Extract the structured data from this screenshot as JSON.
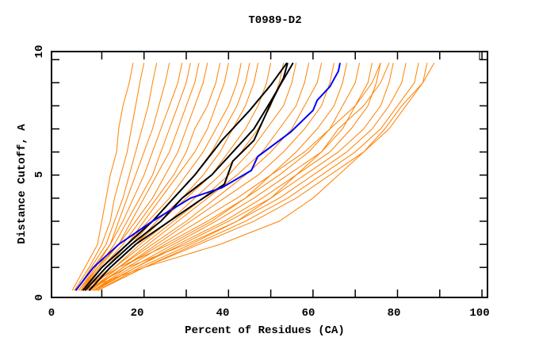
{
  "chart_data": {
    "type": "line",
    "title": "T0989-D2",
    "xlabel": "Percent of Residues (CA)",
    "ylabel": "Distance Cutoff, A",
    "xlim": [
      -1.9,
      101.3
    ],
    "ylim": [
      -0.3,
      10.35
    ],
    "x_tick_labels": [
      "0",
      "20",
      "40",
      "60",
      "80",
      "100"
    ],
    "y_tick_labels": [
      "0",
      "5",
      "10"
    ],
    "grid": false,
    "colors": {
      "models": "#ff8000",
      "highlight_black": "#000000",
      "highlight_blue": "#0000ff"
    },
    "y_levels": [
      0,
      1,
      2,
      3,
      4,
      5,
      6,
      7,
      8,
      9,
      9.86
    ],
    "model_series_x": [
      [
        3,
        6,
        9,
        10,
        11,
        12,
        13.5,
        14,
        15,
        16.5,
        17.4
      ],
      [
        3.5,
        7,
        10,
        12,
        13,
        14.5,
        16,
        17,
        18,
        19,
        20
      ],
      [
        4,
        7.5,
        11,
        13,
        15,
        16.5,
        18,
        19.5,
        21,
        22,
        23
      ],
      [
        4,
        8,
        12,
        14,
        16,
        18,
        20,
        22,
        23.5,
        25,
        26
      ],
      [
        4.5,
        8.5,
        12,
        15,
        17.5,
        20,
        22,
        24,
        26,
        28,
        29
      ],
      [
        4.5,
        9,
        13,
        16,
        19,
        22,
        24,
        26,
        28,
        30,
        31
      ],
      [
        5,
        9,
        14,
        17,
        20,
        23,
        26,
        28,
        30,
        32,
        33
      ],
      [
        5,
        9.5,
        14,
        18,
        22,
        25,
        28,
        30,
        32,
        34,
        35
      ],
      [
        5,
        10,
        15,
        19,
        23,
        27,
        30,
        32,
        35,
        37,
        38
      ],
      [
        5.5,
        10,
        16,
        20,
        24,
        28,
        32,
        35,
        37,
        39,
        40
      ],
      [
        5.5,
        11,
        16,
        21,
        26,
        30,
        34,
        37,
        40,
        42,
        43
      ],
      [
        6,
        11,
        17,
        22,
        27,
        32,
        36,
        39,
        42,
        44,
        45
      ],
      [
        6,
        12,
        18,
        23,
        29,
        34,
        38,
        41,
        44,
        46,
        47
      ],
      [
        6,
        12,
        18,
        24,
        30,
        36,
        40,
        44,
        47,
        49,
        50
      ],
      [
        6.5,
        13,
        19,
        26,
        32,
        38,
        43,
        47,
        50,
        52,
        53
      ],
      [
        6.5,
        13,
        20,
        27,
        34,
        40,
        45,
        49,
        53,
        55,
        56
      ],
      [
        7,
        14,
        21,
        28,
        35,
        42,
        48,
        52,
        56,
        58,
        59
      ],
      [
        7,
        14,
        22,
        30,
        37,
        44,
        50,
        55,
        58,
        61,
        62
      ],
      [
        7,
        15,
        23,
        31,
        39,
        47,
        53,
        58,
        62,
        64,
        65
      ],
      [
        7.5,
        15,
        24,
        33,
        42,
        50,
        56,
        61,
        65,
        67,
        68
      ],
      [
        8,
        16,
        25,
        35,
        44,
        52,
        59,
        64,
        67,
        70,
        71
      ],
      [
        8,
        17,
        27,
        37,
        46,
        54,
        62,
        67,
        70,
        73,
        74
      ],
      [
        8,
        18,
        28,
        39,
        48,
        56,
        64,
        69,
        73,
        75,
        76
      ],
      [
        8.5,
        18,
        29,
        40,
        50,
        58,
        66,
        72,
        76,
        78,
        79
      ],
      [
        9,
        19,
        31,
        42,
        52,
        60,
        68,
        74,
        78,
        81,
        82
      ],
      [
        9,
        20,
        32,
        44,
        54,
        62,
        70,
        76,
        80,
        84,
        85
      ],
      [
        9,
        20,
        33,
        46,
        56,
        64,
        72,
        78,
        82,
        86,
        87
      ],
      [
        5,
        20,
        38,
        52,
        60,
        66,
        72,
        77,
        81,
        86,
        88.7
      ],
      [
        5,
        14,
        26,
        36,
        44,
        50,
        58,
        64,
        70,
        74,
        76
      ],
      [
        6,
        16,
        30,
        42,
        50,
        56,
        62,
        66,
        72,
        76,
        78
      ]
    ],
    "highlight_black": [
      [
        [
          5.5,
          0
        ],
        [
          10,
          1
        ],
        [
          16,
          2
        ],
        [
          22,
          3
        ],
        [
          27,
          4
        ],
        [
          32,
          5
        ],
        [
          38.4,
          6.5
        ],
        [
          45,
          7.8
        ],
        [
          50,
          8.9
        ],
        [
          53.8,
          9.86
        ]
      ],
      [
        [
          6,
          0
        ],
        [
          11,
          1
        ],
        [
          17,
          2
        ],
        [
          24,
          3
        ],
        [
          29,
          4
        ],
        [
          36,
          5
        ],
        [
          42,
          6.2
        ],
        [
          46,
          7
        ],
        [
          50,
          8.2
        ],
        [
          55.3,
          9.86
        ]
      ],
      [
        [
          7,
          0
        ],
        [
          12,
          1
        ],
        [
          18,
          2
        ],
        [
          26,
          3
        ],
        [
          34,
          4
        ],
        [
          39,
          4.6
        ],
        [
          41,
          5.6
        ],
        [
          46,
          6.5
        ],
        [
          50,
          8.1
        ],
        [
          53,
          9.2
        ],
        [
          54,
          9.86
        ]
      ]
    ],
    "highlight_blue": [
      [
        3.8,
        0
      ],
      [
        8,
        1
      ],
      [
        14,
        2
      ],
      [
        22,
        3
      ],
      [
        31,
        4
      ],
      [
        38.4,
        4.45
      ],
      [
        45.4,
        5.2
      ],
      [
        46.9,
        5.8
      ],
      [
        54.7,
        6.86
      ],
      [
        60,
        7.8
      ],
      [
        61,
        8.24
      ],
      [
        64,
        8.83
      ],
      [
        66,
        9.5
      ],
      [
        66.4,
        9.86
      ]
    ]
  }
}
